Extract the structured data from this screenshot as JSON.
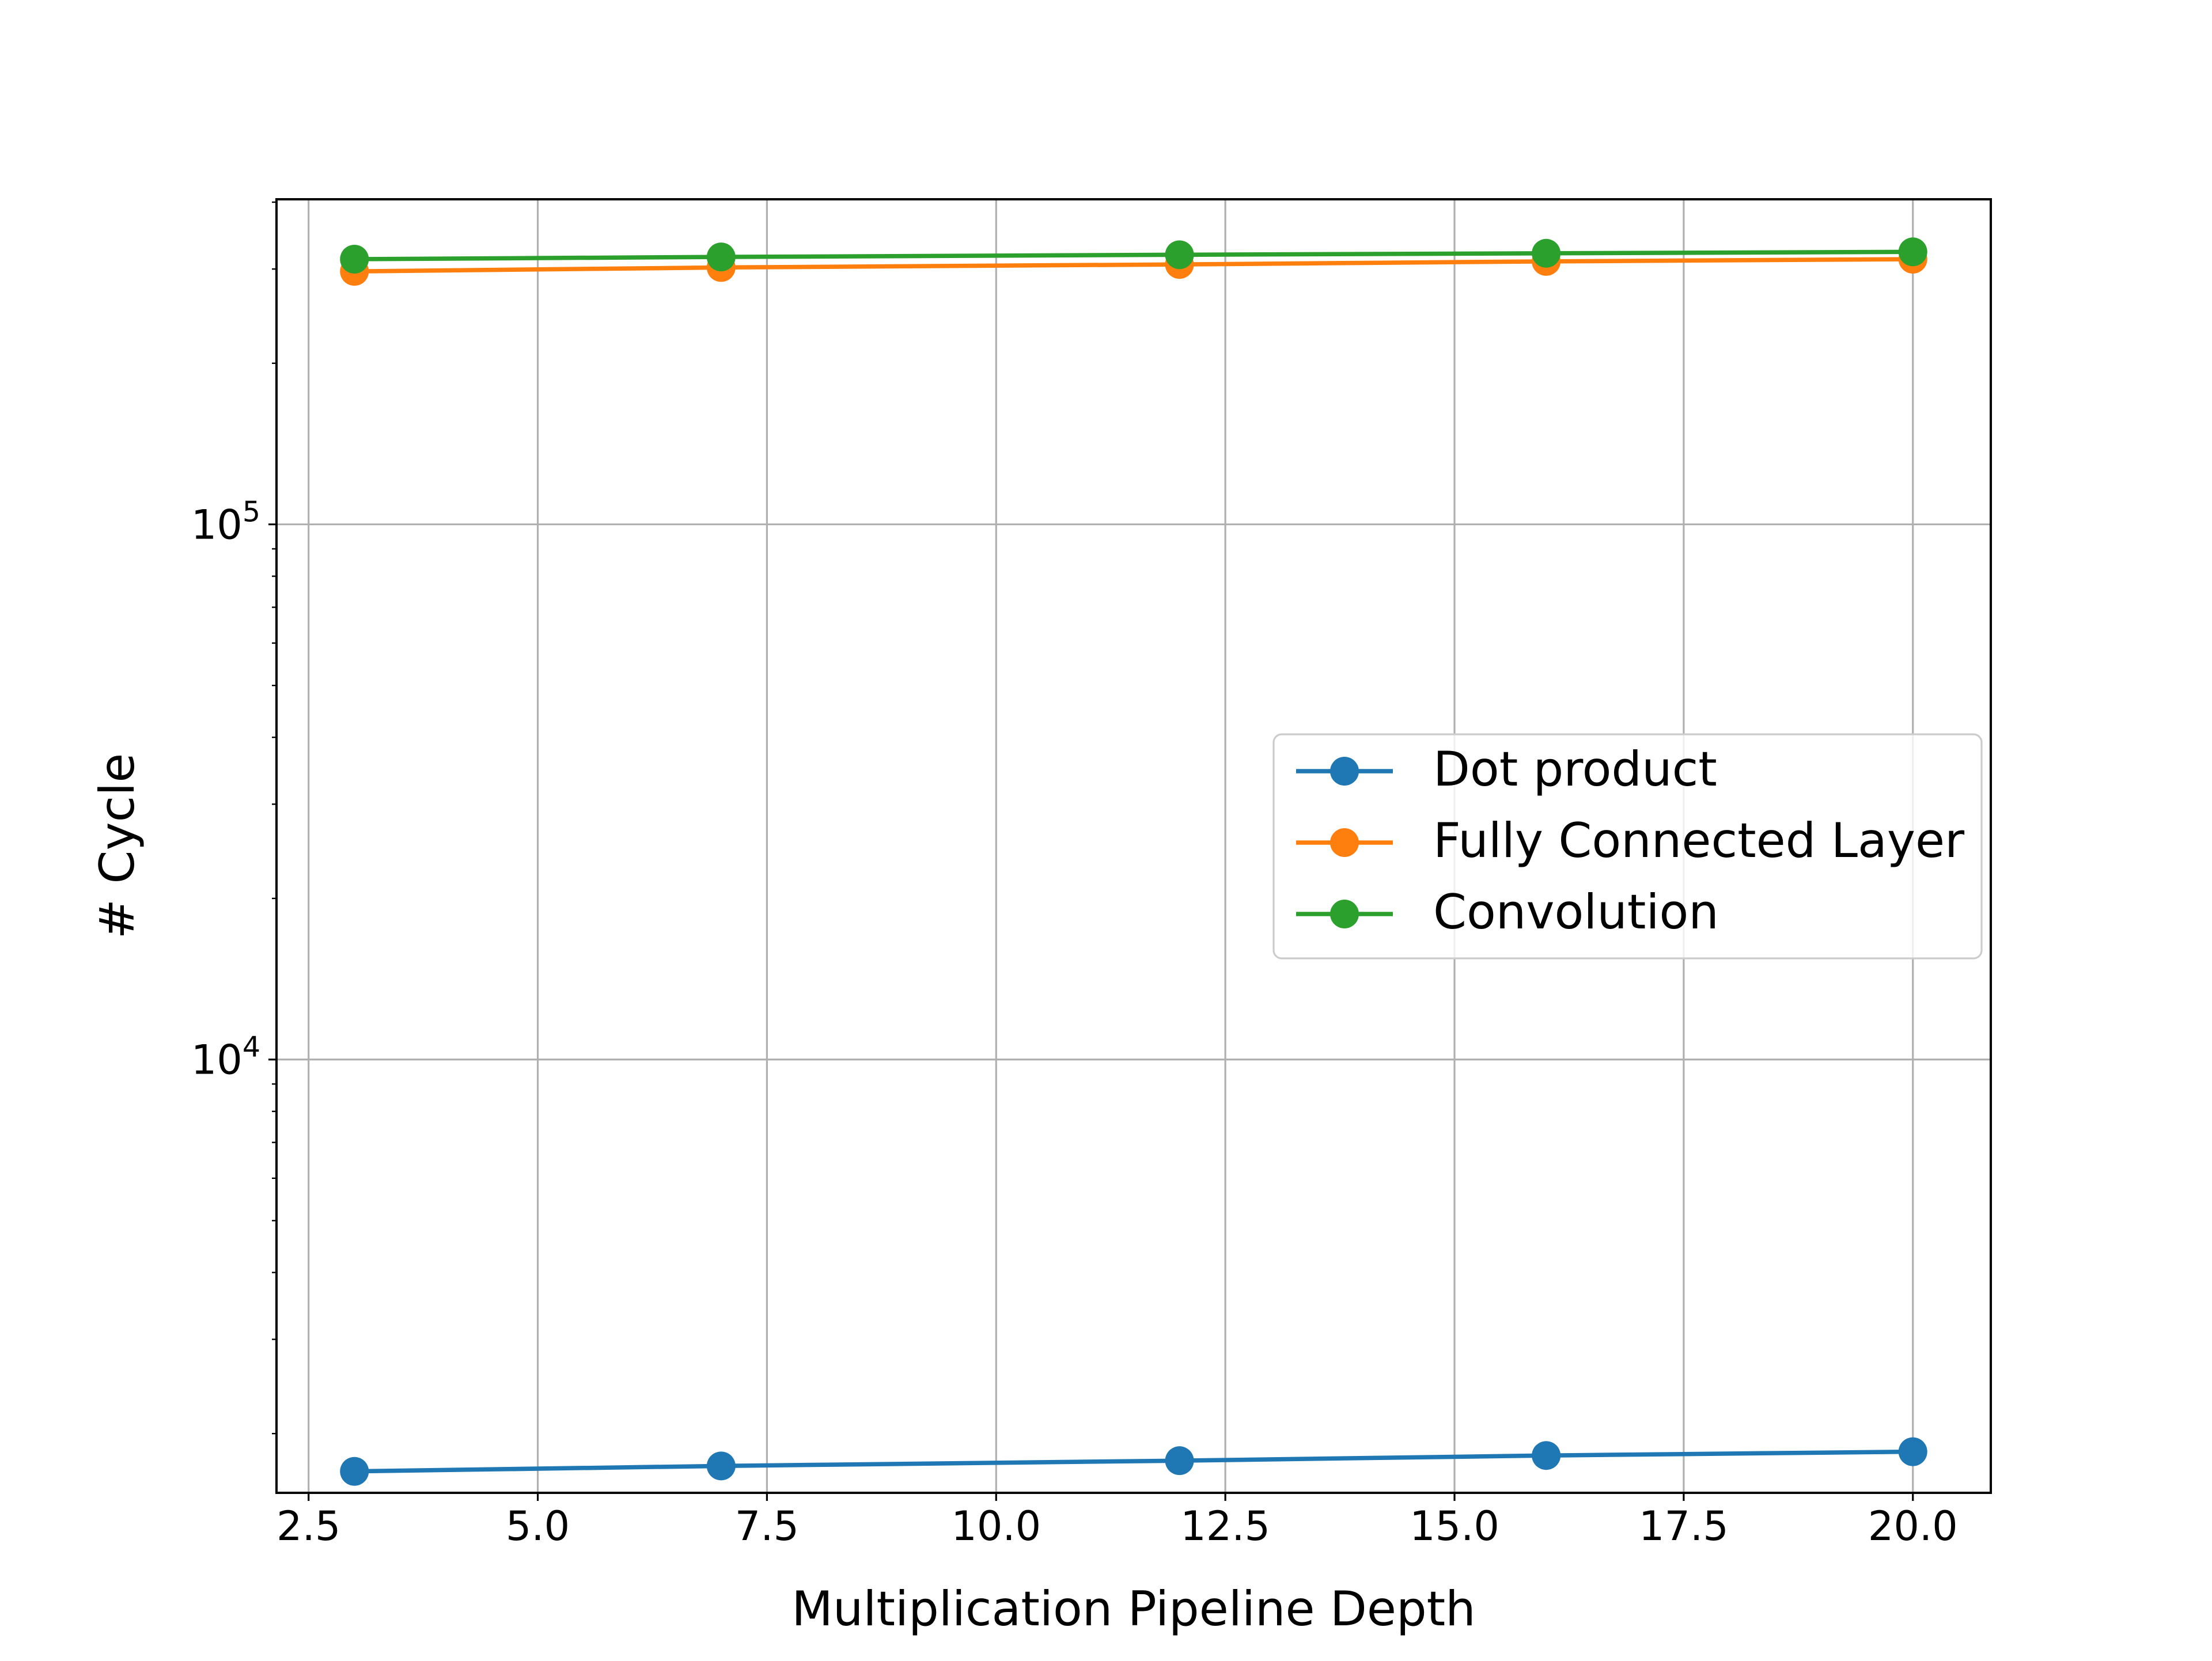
{
  "chart_data": {
    "type": "line",
    "title": "",
    "xlabel": "Multiplication Pipeline Depth",
    "ylabel": "# Cycle",
    "x": [
      3,
      7,
      12,
      16,
      20
    ],
    "series": [
      {
        "name": "Dot product",
        "color": "#1f77b4",
        "marker": "circle",
        "values": [
          1700,
          1740,
          1780,
          1820,
          1850
        ]
      },
      {
        "name": "Fully Connected Layer",
        "color": "#ff7f0e",
        "marker": "circle",
        "values": [
          297000,
          302000,
          306000,
          310000,
          313000
        ]
      },
      {
        "name": "Convolution",
        "color": "#2ca02c",
        "marker": "circle",
        "values": [
          313000,
          316000,
          319000,
          321000,
          323000
        ]
      }
    ],
    "xlim": [
      2.15,
      20.85
    ],
    "ylim": [
      1550,
      405000
    ],
    "yscale": "log",
    "xticks": [
      {
        "value": 2.5,
        "label": "2.5"
      },
      {
        "value": 5.0,
        "label": "5.0"
      },
      {
        "value": 7.5,
        "label": "7.5"
      },
      {
        "value": 10.0,
        "label": "10.0"
      },
      {
        "value": 12.5,
        "label": "12.5"
      },
      {
        "value": 15.0,
        "label": "15.0"
      },
      {
        "value": 17.5,
        "label": "17.5"
      },
      {
        "value": 20.0,
        "label": "20.0"
      }
    ],
    "yticks_major": [
      {
        "value": 10000,
        "base": "10",
        "exp": "4"
      },
      {
        "value": 100000,
        "base": "10",
        "exp": "5"
      }
    ],
    "yticks_minor": [
      2000,
      3000,
      4000,
      5000,
      6000,
      7000,
      8000,
      9000,
      20000,
      30000,
      40000,
      50000,
      60000,
      70000,
      80000,
      90000,
      200000,
      300000,
      400000
    ],
    "grid": true,
    "legend_position": "center-right"
  }
}
